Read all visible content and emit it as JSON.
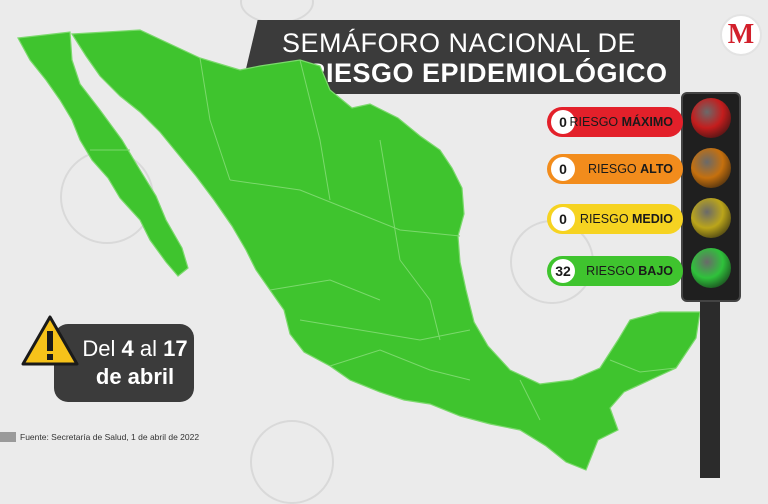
{
  "title": {
    "line1": "SEMÁFORO NACIONAL DE",
    "line2": "RIESGO EPIDEMIOLÓGICO"
  },
  "logo": {
    "letter": "M"
  },
  "legend": [
    {
      "count": "0",
      "label_prefix": "RIESGO ",
      "label_strong": "MÁXIMO",
      "color": "#e3202a",
      "lamp_color": "#c41d1d"
    },
    {
      "count": "0",
      "label_prefix": "RIESGO ",
      "label_strong": "ALTO",
      "color": "#f28c1c",
      "lamp_color": "#c5700e"
    },
    {
      "count": "0",
      "label_prefix": "RIESGO ",
      "label_strong": "MEDIO",
      "color": "#f6d321",
      "lamp_color": "#bba51a"
    },
    {
      "count": "32",
      "label_prefix": "RIESGO ",
      "label_strong": "BAJO",
      "color": "#3fc42e",
      "lamp_color": "#2fc23b"
    }
  ],
  "date": {
    "prefix": "Del ",
    "start": "4",
    "middle": " al ",
    "end": "17",
    "line2": "de abril"
  },
  "source": "Fuente: Secretaría de Salud, 1 de abril de 2022",
  "map": {
    "fill_color": "#3fc42e",
    "border_color": "#7bd96c"
  }
}
